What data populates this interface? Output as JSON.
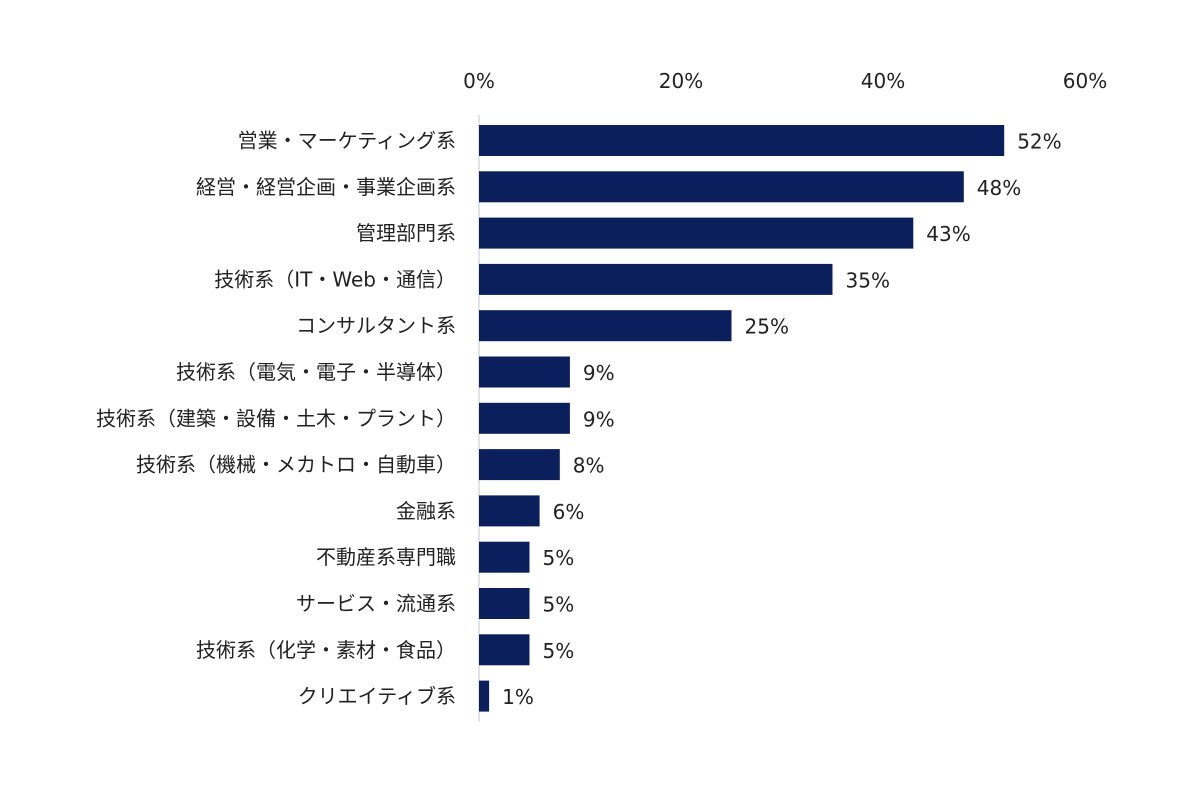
{
  "chart_data": {
    "type": "bar",
    "orientation": "horizontal",
    "title": "",
    "xlabel": "",
    "ylabel": "",
    "xlim": [
      0,
      60
    ],
    "x_ticks": [
      0,
      20,
      40,
      60
    ],
    "tick_format": "{v}%",
    "x_axis_position": "top",
    "grid": false,
    "legend": "none",
    "bar_color": "#0b1f5c",
    "categories": [
      "営業・マーケティング系",
      "経営・経営企画・事業企画系",
      "管理部門系",
      "技術系（IT・Web・通信）",
      "コンサルタント系",
      "技術系（電気・電子・半導体）",
      "技術系（建築・設備・土木・プラント）",
      "技術系（機械・メカトロ・自動車）",
      "金融系",
      "不動産系専門職",
      "サービス・流通系",
      "技術系（化学・素材・食品）",
      "クリエイティブ系"
    ],
    "values": [
      52,
      48,
      43,
      35,
      25,
      9,
      9,
      8,
      6,
      5,
      5,
      5,
      1
    ],
    "value_labels": [
      "52%",
      "48%",
      "43%",
      "35%",
      "25%",
      "9%",
      "9%",
      "8%",
      "6%",
      "5%",
      "5%",
      "5%",
      "1%"
    ]
  }
}
